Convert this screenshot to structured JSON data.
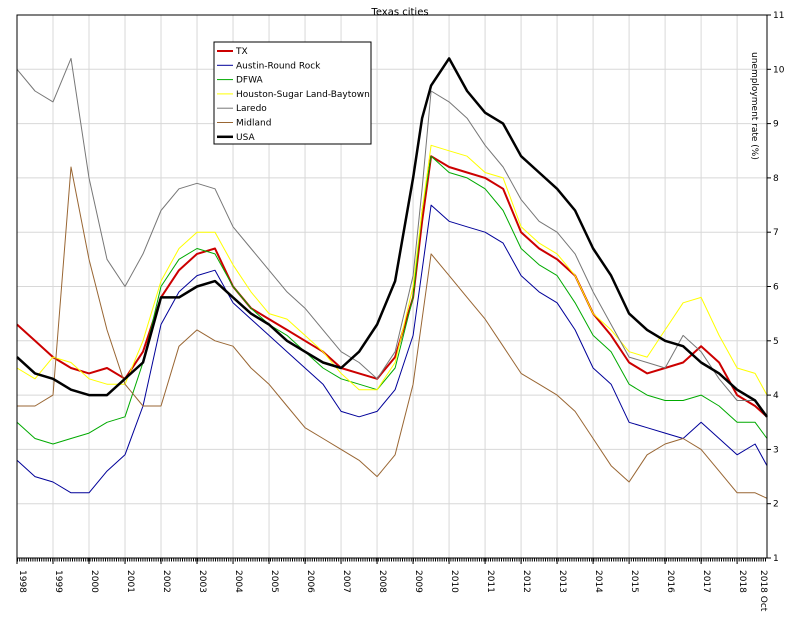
{
  "chart_data": {
    "type": "line",
    "title": "Texas cities",
    "ylabel": "unemployment rate (%)",
    "xlabel": "",
    "ylim": [
      1,
      11
    ],
    "xlim": [
      1998.0,
      2018.83
    ],
    "y_ticks": [
      1,
      2,
      3,
      4,
      5,
      6,
      7,
      8,
      9,
      10,
      11
    ],
    "x_ticks": [
      {
        "value": 1998,
        "label": "1998"
      },
      {
        "value": 1999,
        "label": "1999"
      },
      {
        "value": 2000,
        "label": "2000"
      },
      {
        "value": 2001,
        "label": "2001"
      },
      {
        "value": 2002,
        "label": "2002"
      },
      {
        "value": 2003,
        "label": "2003"
      },
      {
        "value": 2004,
        "label": "2004"
      },
      {
        "value": 2005,
        "label": "2005"
      },
      {
        "value": 2006,
        "label": "2006"
      },
      {
        "value": 2007,
        "label": "2007"
      },
      {
        "value": 2008,
        "label": "2008"
      },
      {
        "value": 2009,
        "label": "2009"
      },
      {
        "value": 2010,
        "label": "2010"
      },
      {
        "value": 2011,
        "label": "2011"
      },
      {
        "value": 2012,
        "label": "2012"
      },
      {
        "value": 2013,
        "label": "2013"
      },
      {
        "value": 2014,
        "label": "2014"
      },
      {
        "value": 2015,
        "label": "2015"
      },
      {
        "value": 2016,
        "label": "2016"
      },
      {
        "value": 2017,
        "label": "2017"
      },
      {
        "value": 2018,
        "label": "2018"
      }
    ],
    "x_end_label": "2018 Oct",
    "legend_position": "top-left",
    "grid": true,
    "series": [
      {
        "name": "TX",
        "color": "#cc0000",
        "width": 2,
        "x": [
          1998.0,
          1998.5,
          1999.0,
          1999.5,
          2000.0,
          2000.5,
          2001.0,
          2001.5,
          2002.0,
          2002.5,
          2003.0,
          2003.5,
          2004.0,
          2004.5,
          2005.0,
          2005.5,
          2006.0,
          2006.5,
          2007.0,
          2007.5,
          2008.0,
          2008.5,
          2009.0,
          2009.25,
          2009.5,
          2010.0,
          2010.5,
          2011.0,
          2011.5,
          2012.0,
          2012.5,
          2013.0,
          2013.5,
          2014.0,
          2014.5,
          2015.0,
          2015.5,
          2016.0,
          2016.5,
          2017.0,
          2017.5,
          2018.0,
          2018.5,
          2018.83
        ],
        "y": [
          5.3,
          5.0,
          4.7,
          4.5,
          4.4,
          4.5,
          4.3,
          4.8,
          5.8,
          6.3,
          6.6,
          6.7,
          6.0,
          5.6,
          5.4,
          5.2,
          5.0,
          4.8,
          4.5,
          4.4,
          4.3,
          4.7,
          5.8,
          7.2,
          8.4,
          8.2,
          8.1,
          8.0,
          7.8,
          7.0,
          6.7,
          6.5,
          6.2,
          5.5,
          5.1,
          4.6,
          4.4,
          4.5,
          4.6,
          4.9,
          4.6,
          4.0,
          3.8,
          3.6
        ]
      },
      {
        "name": "Austin-Round Rock",
        "color": "#000099",
        "width": 1,
        "x": [
          1998.0,
          1998.5,
          1999.0,
          1999.5,
          2000.0,
          2000.5,
          2001.0,
          2001.5,
          2002.0,
          2002.5,
          2003.0,
          2003.5,
          2004.0,
          2004.5,
          2005.0,
          2005.5,
          2006.0,
          2006.5,
          2007.0,
          2007.5,
          2008.0,
          2008.5,
          2009.0,
          2009.25,
          2009.5,
          2010.0,
          2010.5,
          2011.0,
          2011.5,
          2012.0,
          2012.5,
          2013.0,
          2013.5,
          2014.0,
          2014.5,
          2015.0,
          2015.5,
          2016.0,
          2016.5,
          2017.0,
          2017.5,
          2018.0,
          2018.5,
          2018.83
        ],
        "y": [
          2.8,
          2.5,
          2.4,
          2.2,
          2.2,
          2.6,
          2.9,
          3.8,
          5.3,
          5.9,
          6.2,
          6.3,
          5.7,
          5.4,
          5.1,
          4.8,
          4.5,
          4.2,
          3.7,
          3.6,
          3.7,
          4.1,
          5.1,
          6.3,
          7.5,
          7.2,
          7.1,
          7.0,
          6.8,
          6.2,
          5.9,
          5.7,
          5.2,
          4.5,
          4.2,
          3.5,
          3.4,
          3.3,
          3.2,
          3.5,
          3.2,
          2.9,
          3.1,
          2.7
        ]
      },
      {
        "name": "DFWA",
        "color": "#00aa00",
        "width": 1,
        "x": [
          1998.0,
          1998.5,
          1999.0,
          1999.5,
          2000.0,
          2000.5,
          2001.0,
          2001.5,
          2002.0,
          2002.5,
          2003.0,
          2003.5,
          2004.0,
          2004.5,
          2005.0,
          2005.5,
          2006.0,
          2006.5,
          2007.0,
          2007.5,
          2008.0,
          2008.5,
          2009.0,
          2009.25,
          2009.5,
          2010.0,
          2010.5,
          2011.0,
          2011.5,
          2012.0,
          2012.5,
          2013.0,
          2013.5,
          2014.0,
          2014.5,
          2015.0,
          2015.5,
          2016.0,
          2016.5,
          2017.0,
          2017.5,
          2018.0,
          2018.5,
          2018.83
        ],
        "y": [
          3.5,
          3.2,
          3.1,
          3.2,
          3.3,
          3.5,
          3.6,
          4.6,
          6.0,
          6.5,
          6.7,
          6.6,
          6.0,
          5.6,
          5.3,
          5.1,
          4.8,
          4.5,
          4.3,
          4.2,
          4.1,
          4.5,
          5.8,
          7.4,
          8.4,
          8.1,
          8.0,
          7.8,
          7.4,
          6.7,
          6.4,
          6.2,
          5.7,
          5.1,
          4.8,
          4.2,
          4.0,
          3.9,
          3.9,
          4.0,
          3.8,
          3.5,
          3.5,
          3.2
        ]
      },
      {
        "name": "Houston-Sugar Land-Baytown",
        "color": "#ffff00",
        "width": 1,
        "x": [
          1998.0,
          1998.5,
          1999.0,
          1999.5,
          2000.0,
          2000.5,
          2001.0,
          2001.5,
          2002.0,
          2002.5,
          2003.0,
          2003.5,
          2004.0,
          2004.5,
          2005.0,
          2005.5,
          2006.0,
          2006.5,
          2007.0,
          2007.5,
          2008.0,
          2008.5,
          2009.0,
          2009.25,
          2009.5,
          2010.0,
          2010.5,
          2011.0,
          2011.5,
          2012.0,
          2012.5,
          2013.0,
          2013.5,
          2014.0,
          2014.5,
          2015.0,
          2015.5,
          2016.0,
          2016.5,
          2017.0,
          2017.5,
          2018.0,
          2018.5,
          2018.83
        ],
        "y": [
          4.5,
          4.3,
          4.7,
          4.6,
          4.3,
          4.2,
          4.2,
          5.0,
          6.1,
          6.7,
          7.0,
          7.0,
          6.4,
          5.9,
          5.5,
          5.4,
          5.1,
          4.8,
          4.4,
          4.1,
          4.1,
          4.6,
          6.0,
          7.4,
          8.6,
          8.5,
          8.4,
          8.1,
          8.0,
          7.1,
          6.8,
          6.6,
          6.2,
          5.5,
          5.2,
          4.8,
          4.7,
          5.2,
          5.7,
          5.8,
          5.1,
          4.5,
          4.4,
          4.0
        ]
      },
      {
        "name": "Laredo",
        "color": "#777777",
        "width": 1,
        "x": [
          1998.0,
          1998.5,
          1999.0,
          1999.5,
          2000.0,
          2000.5,
          2001.0,
          2001.5,
          2002.0,
          2002.5,
          2003.0,
          2003.5,
          2004.0,
          2004.5,
          2005.0,
          2005.5,
          2006.0,
          2006.5,
          2007.0,
          2007.5,
          2008.0,
          2008.5,
          2009.0,
          2009.25,
          2009.5,
          2010.0,
          2010.5,
          2011.0,
          2011.5,
          2012.0,
          2012.5,
          2013.0,
          2013.5,
          2014.0,
          2014.5,
          2015.0,
          2015.5,
          2016.0,
          2016.5,
          2017.0,
          2017.5,
          2018.0,
          2018.5,
          2018.83
        ],
        "y": [
          10.0,
          9.6,
          9.4,
          10.2,
          8.0,
          6.5,
          6.0,
          6.6,
          7.4,
          7.8,
          7.9,
          7.8,
          7.1,
          6.7,
          6.3,
          5.9,
          5.6,
          5.2,
          4.8,
          4.6,
          4.3,
          4.8,
          6.2,
          7.8,
          9.6,
          9.4,
          9.1,
          8.6,
          8.2,
          7.6,
          7.2,
          7.0,
          6.6,
          5.9,
          5.3,
          4.7,
          4.6,
          4.5,
          5.1,
          4.8,
          4.3,
          3.9,
          3.9,
          3.6
        ]
      },
      {
        "name": "Midland",
        "color": "#996633",
        "width": 1,
        "x": [
          1998.0,
          1998.5,
          1999.0,
          1999.5,
          2000.0,
          2000.5,
          2001.0,
          2001.5,
          2002.0,
          2002.5,
          2003.0,
          2003.5,
          2004.0,
          2004.5,
          2005.0,
          2005.5,
          2006.0,
          2006.5,
          2007.0,
          2007.5,
          2008.0,
          2008.5,
          2009.0,
          2009.25,
          2009.5,
          2010.0,
          2010.5,
          2011.0,
          2011.5,
          2012.0,
          2012.5,
          2013.0,
          2013.5,
          2014.0,
          2014.5,
          2015.0,
          2015.5,
          2016.0,
          2016.5,
          2017.0,
          2017.5,
          2018.0,
          2018.5,
          2018.83
        ],
        "y": [
          3.8,
          3.8,
          4.0,
          8.2,
          6.5,
          5.2,
          4.2,
          3.8,
          3.8,
          4.9,
          5.2,
          5.0,
          4.9,
          4.5,
          4.2,
          3.8,
          3.4,
          3.2,
          3.0,
          2.8,
          2.5,
          2.9,
          4.2,
          5.4,
          6.6,
          6.2,
          5.8,
          5.4,
          4.9,
          4.4,
          4.2,
          4.0,
          3.7,
          3.2,
          2.7,
          2.4,
          2.9,
          3.1,
          3.2,
          3.0,
          2.6,
          2.2,
          2.2,
          2.1
        ]
      },
      {
        "name": "USA",
        "color": "#000000",
        "width": 2.5,
        "x": [
          1998.0,
          1998.5,
          1999.0,
          1999.5,
          2000.0,
          2000.5,
          2001.0,
          2001.5,
          2002.0,
          2002.5,
          2003.0,
          2003.5,
          2004.0,
          2004.5,
          2005.0,
          2005.5,
          2006.0,
          2006.5,
          2007.0,
          2007.5,
          2008.0,
          2008.5,
          2009.0,
          2009.25,
          2009.5,
          2010.0,
          2010.5,
          2011.0,
          2011.5,
          2012.0,
          2012.5,
          2013.0,
          2013.5,
          2014.0,
          2014.5,
          2015.0,
          2015.5,
          2016.0,
          2016.5,
          2017.0,
          2017.5,
          2018.0,
          2018.5,
          2018.83
        ],
        "y": [
          4.7,
          4.4,
          4.3,
          4.1,
          4.0,
          4.0,
          4.3,
          4.6,
          5.8,
          5.8,
          6.0,
          6.1,
          5.8,
          5.5,
          5.3,
          5.0,
          4.8,
          4.6,
          4.5,
          4.8,
          5.3,
          6.1,
          8.0,
          9.1,
          9.7,
          10.2,
          9.6,
          9.2,
          9.0,
          8.4,
          8.1,
          7.8,
          7.4,
          6.7,
          6.2,
          5.5,
          5.2,
          5.0,
          4.9,
          4.6,
          4.4,
          4.1,
          3.9,
          3.6
        ]
      }
    ]
  }
}
